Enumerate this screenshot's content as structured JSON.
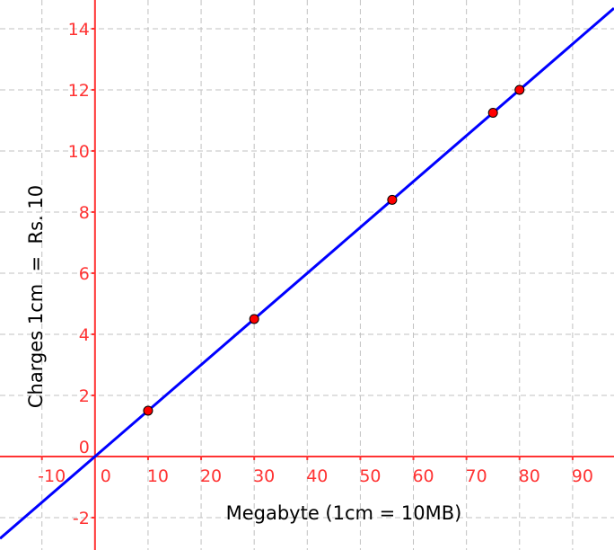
{
  "chart_data": {
    "type": "line",
    "title": "",
    "xlabel": "Megabyte (1cm = 10MB)",
    "ylabel": "Charges 1cm  =  Rs. 10",
    "xlim": [
      -17.9,
      97.8
    ],
    "ylim": [
      -3.06,
      14.94
    ],
    "grid": true,
    "x_ticks": [
      -10,
      0,
      10,
      20,
      30,
      40,
      50,
      60,
      70,
      80,
      90
    ],
    "y_ticks": [
      -2,
      0,
      2,
      4,
      6,
      8,
      10,
      12,
      14
    ],
    "line": {
      "slope": 0.15,
      "intercept": 0
    },
    "points": [
      {
        "x": 10,
        "y": 1.5
      },
      {
        "x": 30,
        "y": 4.5
      },
      {
        "x": 56,
        "y": 8.4
      },
      {
        "x": 75,
        "y": 11.25
      },
      {
        "x": 80,
        "y": 12
      }
    ],
    "colors": {
      "axes": "#ff3333",
      "line": "#0000ff",
      "points": "#ff0000",
      "grid": "#c0c0c0"
    }
  }
}
